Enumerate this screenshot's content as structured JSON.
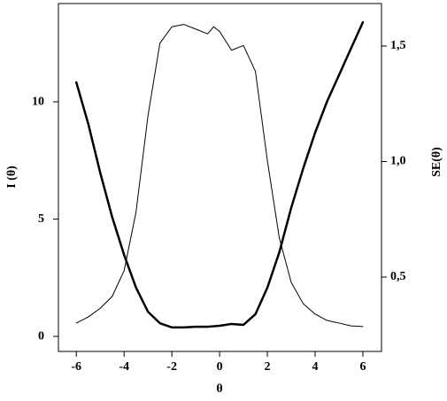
{
  "chart_data": {
    "type": "line",
    "x_label": "θ",
    "y_label": "I (θ)",
    "y2_label": "SE(θ)",
    "x": [
      -6,
      -5.5,
      -5,
      -4.5,
      -4,
      -3.5,
      -3,
      -2.5,
      -2,
      -1.5,
      -1,
      -0.5,
      -0.25,
      0,
      0.5,
      1,
      1.5,
      2,
      2.5,
      3,
      3.5,
      4,
      4.5,
      5,
      5.5,
      6
    ],
    "series": [
      {
        "color": "#000000",
        "width": 1,
        "values": [
          0.57,
          0.83,
          1.2,
          1.7,
          2.8,
          5.3,
          9.4,
          12.5,
          13.2,
          13.3,
          13.1,
          12.9,
          13.2,
          13.0,
          12.2,
          12.4,
          11.3,
          7.5,
          4.2,
          2.3,
          1.4,
          0.95,
          0.68,
          0.57,
          0.45,
          0.42
        ]
      },
      {
        "color": "#000000",
        "width": 2.5,
        "axis": "y2",
        "values": [
          1.343,
          1.163,
          0.952,
          0.76,
          0.596,
          0.454,
          0.35,
          0.3,
          0.282,
          0.282,
          0.285,
          0.285,
          0.287,
          0.289,
          0.297,
          0.293,
          0.339,
          0.454,
          0.607,
          0.8,
          0.97,
          1.125,
          1.26,
          1.374,
          1.489,
          1.603
        ]
      }
    ],
    "xlim": [
      -6.75,
      6.78
    ],
    "xticks": [
      -6,
      -4,
      -2,
      0,
      2,
      4,
      6
    ],
    "ylim": [
      -0.64,
      14.19
    ],
    "yticks": [
      0,
      5,
      10
    ],
    "y2lim": [
      0.178,
      1.684
    ],
    "y2ticks": [
      {
        "value": 0.5,
        "label": "0,5"
      },
      {
        "value": 1.0,
        "label": "1,0"
      },
      {
        "value": 1.5,
        "label": "1,5"
      }
    ]
  }
}
